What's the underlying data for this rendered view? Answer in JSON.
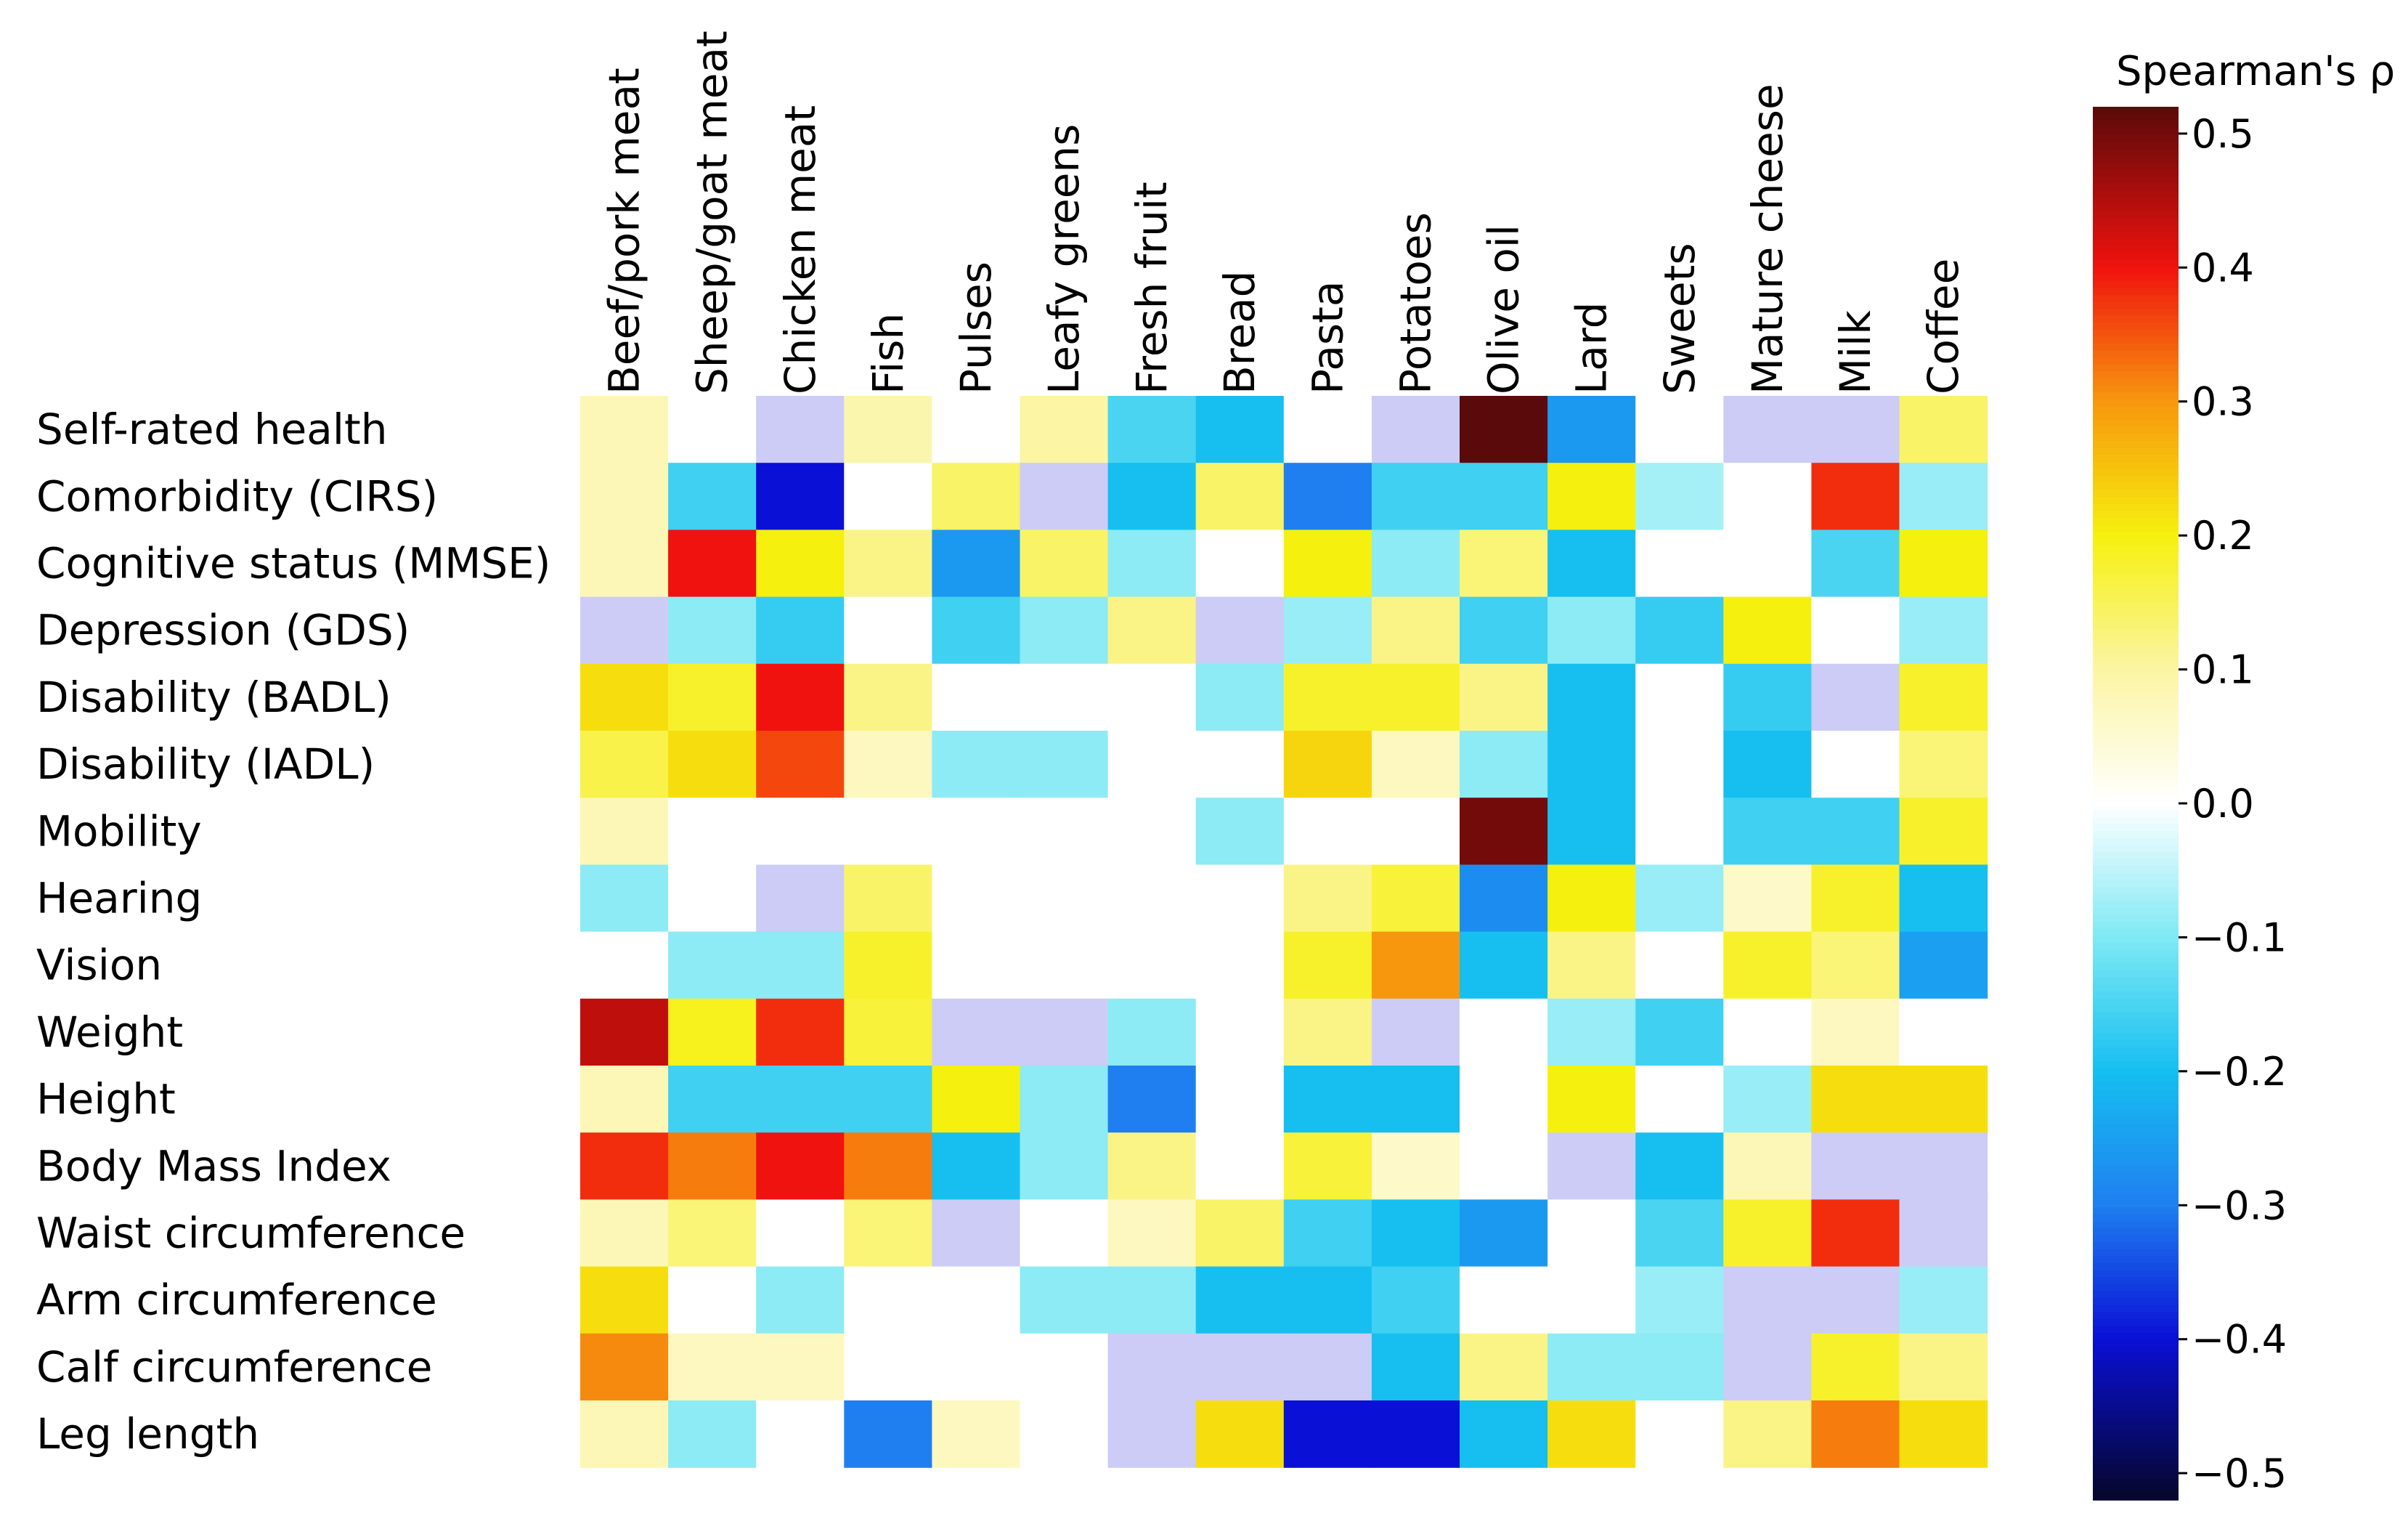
{
  "chart_data": {
    "type": "heatmap",
    "title": "",
    "colorbar": {
      "title": "Spearman's ρ",
      "range": [
        -0.52,
        0.52
      ],
      "ticks": [
        0.5,
        0.4,
        0.3,
        0.2,
        0.1,
        0.0,
        -0.1,
        -0.2,
        -0.3,
        -0.4,
        -0.5
      ],
      "tick_labels": [
        "0.5",
        "0.4",
        "0.3",
        "0.2",
        "0.1",
        "0.0",
        "−0.1",
        "−0.2",
        "−0.3",
        "−0.4",
        "−0.5"
      ],
      "colormap": "jet",
      "colors": [
        [
          -0.52,
          "#06062a"
        ],
        [
          -0.4,
          "#0a10d6"
        ],
        [
          -0.3,
          "#1f7ff0"
        ],
        [
          -0.2,
          "#16bff0"
        ],
        [
          -0.1,
          "#7fe9f4"
        ],
        [
          0.0,
          "#ffffff"
        ],
        [
          0.1,
          "#fbf5a4"
        ],
        [
          0.2,
          "#f6f00e"
        ],
        [
          0.3,
          "#f7970e"
        ],
        [
          0.4,
          "#f0120e"
        ],
        [
          0.52,
          "#5a0a0a"
        ]
      ]
    },
    "columns": [
      "Beef/pork meat",
      "Sheep/goat meat",
      "Chicken meat",
      "Fish",
      "Pulses",
      "Leafy greens",
      "Fresh fruit",
      "Bread",
      "Pasta",
      "Potatoes",
      "Olive oil",
      "Lard",
      "Sweets",
      "Mature cheese",
      "Milk",
      "Coffee"
    ],
    "rows": [
      "Self-rated health",
      "Comorbidity (CIRS)",
      "Cognitive status (MMSE)",
      "Depression (GDS)",
      "Disability (BADL)",
      "Disability (IADL)",
      "Mobility",
      "Hearing",
      "Vision",
      "Weight",
      "Height",
      "Body Mass Index",
      "Waist circumference",
      "Arm circumference",
      "Calf circumference",
      "Leg length"
    ],
    "not_significant_color": "#ccccf7",
    "values": [
      [
        0.08,
        0.0,
        "ns",
        0.09,
        0.0,
        0.1,
        -0.15,
        -0.2,
        0.0,
        "ns",
        0.52,
        -0.26,
        0.0,
        "ns",
        "ns",
        0.14
      ],
      [
        0.08,
        -0.16,
        -0.4,
        0.0,
        0.14,
        "ns",
        -0.2,
        0.14,
        -0.3,
        -0.16,
        -0.16,
        0.2,
        -0.07,
        0.0,
        0.38,
        -0.08
      ],
      [
        0.08,
        0.4,
        0.2,
        0.12,
        -0.26,
        0.14,
        -0.09,
        0.0,
        0.2,
        -0.09,
        0.13,
        -0.2,
        0.0,
        0.0,
        -0.15,
        0.2
      ],
      [
        "ns",
        -0.09,
        -0.17,
        0.0,
        -0.16,
        -0.09,
        0.12,
        "ns",
        -0.08,
        0.12,
        -0.16,
        -0.09,
        -0.17,
        0.2,
        0.0,
        -0.08
      ],
      [
        0.22,
        0.18,
        0.4,
        0.12,
        0.0,
        0.0,
        0.0,
        -0.09,
        0.18,
        0.18,
        0.12,
        -0.2,
        0.0,
        -0.17,
        "ns",
        0.18
      ],
      [
        0.16,
        0.22,
        0.36,
        0.07,
        -0.09,
        -0.09,
        0.0,
        0.0,
        0.23,
        0.07,
        -0.09,
        -0.2,
        0.0,
        -0.2,
        0.0,
        0.13
      ],
      [
        0.08,
        0.0,
        0.0,
        0.0,
        0.0,
        0.0,
        0.0,
        -0.09,
        0.0,
        0.0,
        0.5,
        -0.2,
        0.0,
        -0.16,
        -0.16,
        0.18
      ],
      [
        -0.09,
        0.0,
        "ns",
        0.14,
        0.0,
        0.0,
        0.0,
        0.0,
        0.12,
        0.17,
        -0.28,
        0.2,
        -0.08,
        0.06,
        0.18,
        -0.2
      ],
      [
        0.0,
        -0.09,
        -0.09,
        0.18,
        0.0,
        0.0,
        0.0,
        0.0,
        0.18,
        0.3,
        -0.2,
        0.12,
        0.0,
        0.18,
        0.13,
        -0.25
      ],
      [
        0.44,
        0.19,
        0.38,
        0.17,
        "ns",
        "ns",
        -0.09,
        0.0,
        0.12,
        "ns",
        0.0,
        -0.08,
        -0.16,
        0.0,
        0.07,
        0.0
      ],
      [
        0.08,
        -0.16,
        -0.16,
        -0.16,
        0.2,
        -0.09,
        -0.3,
        0.0,
        -0.2,
        -0.2,
        0.0,
        0.2,
        0.0,
        -0.08,
        0.22,
        0.22
      ],
      [
        0.38,
        0.32,
        0.4,
        0.32,
        -0.2,
        -0.09,
        0.12,
        0.0,
        0.17,
        0.06,
        0.0,
        "ns",
        -0.2,
        0.08,
        "ns",
        "ns"
      ],
      [
        0.08,
        0.13,
        0.0,
        0.13,
        "ns",
        0.0,
        0.07,
        0.14,
        -0.16,
        -0.2,
        -0.26,
        0.0,
        -0.15,
        0.18,
        0.38,
        "ns"
      ],
      [
        0.22,
        0.0,
        -0.09,
        0.0,
        0.0,
        -0.09,
        -0.09,
        -0.2,
        -0.2,
        -0.16,
        0.0,
        0.0,
        -0.08,
        "ns",
        "ns",
        -0.08
      ],
      [
        0.31,
        0.07,
        0.07,
        0.0,
        0.0,
        0.0,
        "ns",
        "ns",
        "ns",
        -0.2,
        0.12,
        -0.09,
        -0.09,
        "ns",
        0.18,
        0.12
      ],
      [
        0.08,
        -0.09,
        0.0,
        -0.3,
        0.07,
        0.0,
        "ns",
        0.22,
        -0.4,
        -0.4,
        -0.2,
        0.22,
        0.0,
        0.12,
        0.32,
        0.22
      ]
    ]
  }
}
